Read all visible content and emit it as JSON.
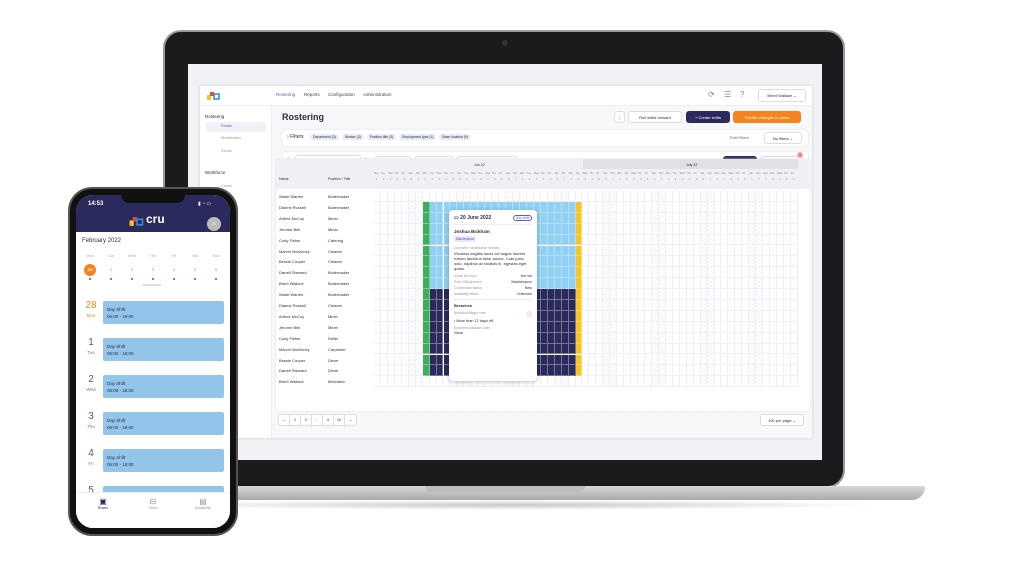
{
  "colors": {
    "navy": "#2b2a5c",
    "orange": "#f5841f",
    "green": "#3fae5a",
    "lightblue": "#8fd0f3",
    "yellow": "#f7c325",
    "accent": "#5b5fc7"
  },
  "app": {
    "nav": [
      "Rostering",
      "Reports",
      "Configuration",
      "Administration"
    ],
    "user": "Brent Wallace",
    "sidebar": {
      "section1": "Rostering",
      "items1": [
        "Roster",
        "Mobilisation",
        "Recall"
      ],
      "section2": "Workforce",
      "items2": [
        "Crews"
      ]
    },
    "title": "Rostering",
    "actions": {
      "more": "⋮",
      "roll": "Roll shifts forward",
      "create": "+ Create shifts",
      "publish": "Publish changes to users"
    },
    "filters": {
      "label": "Filters",
      "chips": [
        "Department (3)",
        "Worker (3)",
        "Position title (3)",
        "Employment type (1)",
        "Base location (9)"
      ],
      "edit": "Edit Filters",
      "preset": "No filters"
    },
    "toolbar": {
      "date_range": "1 June 2022 - 1 July 2022",
      "pending": "Pending offers",
      "rejected": "Rejected offers",
      "request": "Request availability status",
      "validate": "Validate",
      "validation_errors": "Validation errors",
      "error_count": "4"
    },
    "grid": {
      "col_name": "Name",
      "col_position": "Position / Title",
      "months": [
        "Jun 22",
        "July 22"
      ],
      "weekdays": [
        "Mon",
        "Tue",
        "Wed",
        "Thu",
        "Fri",
        "Sat",
        "Sun"
      ],
      "daynums": [
        "1",
        "2",
        "3",
        "4",
        "5",
        "6",
        "7"
      ],
      "rows": [
        [
          "Wade Warren",
          "Boilermaker"
        ],
        [
          "Dianne Russell",
          "Boilermaker"
        ],
        [
          "Arlene McCoy",
          "Miner"
        ],
        [
          "Jerome Bell",
          "Miner"
        ],
        [
          "Cody Fisher",
          "Catering"
        ],
        [
          "Marvin McKinney",
          "Cleaner"
        ],
        [
          "Bessie Cooper",
          "Cleaner"
        ],
        [
          "Darrell Steward",
          "Boilermaker"
        ],
        [
          "Brent Wallace",
          "Boilermaker"
        ],
        [
          "Wade Warren",
          "Boilermaker"
        ],
        [
          "Dianne Russell",
          "Cleaner"
        ],
        [
          "Arlene McCoy",
          "Miner"
        ],
        [
          "Jerome Bell",
          "Miner"
        ],
        [
          "Cody Fisher",
          "Driller"
        ],
        [
          "Marvin McKinney",
          "Carpenter"
        ],
        [
          "Bessie Cooper",
          "Driver"
        ],
        [
          "Darrell Steward",
          "Driver"
        ],
        [
          "Brent Wallace",
          "Mechanic"
        ]
      ]
    },
    "popover": {
      "date": "20 June 2022",
      "badge": "Day shift",
      "worker": "Joshua Bickham",
      "tag": "Maintenance",
      "comment_label": "Comment / Mobilisation Itinerary",
      "comment": "Vivamus sagittis lacus vel augue laoreet rutrum faucibus dolor auctor. Cras justo odio, dapibus ac facilisis in, egestas eget quam.",
      "fields": [
        [
          "Actual shift type",
          "Not set"
        ],
        [
          "Role / Requirement",
          "Maintenance"
        ],
        [
          "Confirmation status",
          "New"
        ],
        [
          "Availability status",
          "Unknown"
        ]
      ],
      "breaches": "Breaches",
      "fatigue_label": "Breached fatigue rules",
      "fatigue_item": "More than 12 days off",
      "validation_label": "Breached validation rules",
      "validation_value": "None"
    },
    "pagination": {
      "pages": [
        "1",
        "2",
        "...",
        "9",
        "10"
      ],
      "per_page": "100 per page"
    }
  },
  "phone": {
    "time": "14:53",
    "brand": "cru",
    "avatar": "JC",
    "month": "February 2022",
    "week": [
      [
        "Mon",
        "28"
      ],
      [
        "Tue",
        "1"
      ],
      [
        "Wed",
        "2"
      ],
      [
        "Thu",
        "3"
      ],
      [
        "Fri",
        "4"
      ],
      [
        "Sat",
        "5"
      ],
      [
        "Sun",
        "6"
      ]
    ],
    "days": [
      [
        "28",
        "Mon"
      ],
      [
        "1",
        "Tue"
      ],
      [
        "2",
        "Wed"
      ],
      [
        "3",
        "Thu"
      ],
      [
        "4",
        "Fri"
      ],
      [
        "5",
        ""
      ]
    ],
    "shift_title": "Day Shift",
    "shift_time": "06:00 - 18:00",
    "tabs": [
      "Roster",
      "Offers",
      "Availability"
    ]
  }
}
